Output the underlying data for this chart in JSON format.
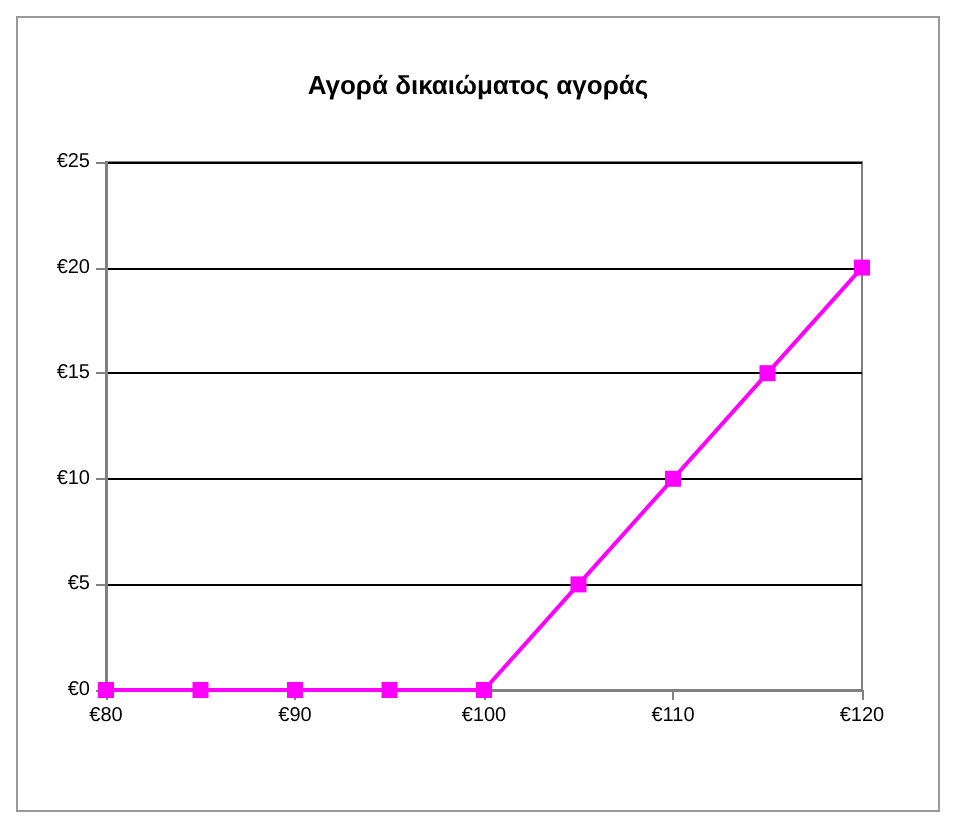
{
  "chart_data": {
    "type": "line",
    "title": "Αγορά δικαιώματος αγοράς",
    "x": [
      80,
      85,
      90,
      95,
      100,
      105,
      110,
      115,
      120
    ],
    "series": [
      {
        "color": "#ff00ff",
        "values": [
          0,
          0,
          0,
          0,
          0,
          5,
          10,
          15,
          20
        ]
      }
    ],
    "xlim": [
      80,
      120
    ],
    "xticks": [
      {
        "value": 80,
        "label": "€80"
      },
      {
        "value": 90,
        "label": "€90"
      },
      {
        "value": 100,
        "label": "€100"
      },
      {
        "value": 110,
        "label": "€110"
      },
      {
        "value": 120,
        "label": "€120"
      }
    ],
    "ylim": [
      0,
      25
    ],
    "yticks": [
      {
        "value": 0,
        "label": "€0"
      },
      {
        "value": 5,
        "label": "€5"
      },
      {
        "value": 10,
        "label": "€10"
      },
      {
        "value": 15,
        "label": "€15"
      },
      {
        "value": 20,
        "label": "€20"
      },
      {
        "value": 25,
        "label": "€25"
      }
    ],
    "grid": "y",
    "marker": "square",
    "line_style": "solid"
  }
}
